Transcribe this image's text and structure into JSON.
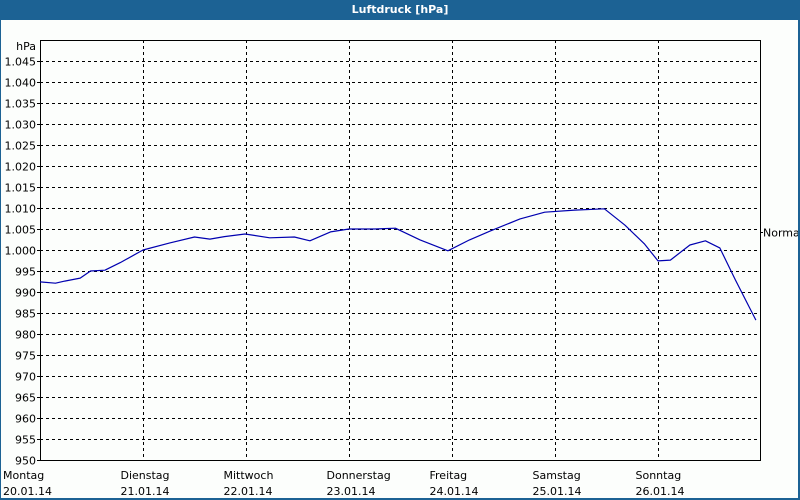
{
  "window": {
    "title": "Luftdruck [hPa]"
  },
  "chart_data": {
    "type": "line",
    "title": "Luftdruck [hPa]",
    "ylabel": "hPa",
    "xlabel": "",
    "ylim": [
      950,
      1050
    ],
    "grid": true,
    "y_ticks": [
      950,
      955,
      960,
      965,
      970,
      975,
      980,
      985,
      990,
      995,
      1000,
      1005,
      1010,
      1015,
      1020,
      1025,
      1030,
      1035,
      1040,
      1045
    ],
    "y_tick_labels": [
      "950",
      "955",
      "960",
      "965",
      "970",
      "975",
      "980",
      "985",
      "990",
      "995",
      "1.000",
      "1.005",
      "1.010",
      "1.015",
      "1.020",
      "1.025",
      "1.030",
      "1.035",
      "1.040",
      "1.045"
    ],
    "x_ticks": [
      {
        "day": "Montag",
        "date": "20.01.14"
      },
      {
        "day": "Dienstag",
        "date": "21.01.14"
      },
      {
        "day": "Mittwoch",
        "date": "22.01.14"
      },
      {
        "day": "Donnerstag",
        "date": "23.01.14"
      },
      {
        "day": "Freitag",
        "date": "24.01.14"
      },
      {
        "day": "Samstag",
        "date": "25.01.14"
      },
      {
        "day": "Sonntag",
        "date": "26.01.14"
      }
    ],
    "reference_line": {
      "label": "Normal",
      "value": 1004.3
    },
    "series": [
      {
        "name": "Luftdruck",
        "color": "#0000b0",
        "x_days": [
          0,
          0.15,
          0.24,
          0.39,
          0.49,
          0.63,
          0.78,
          1.0,
          1.26,
          1.5,
          1.65,
          1.79,
          1.99,
          2.23,
          2.47,
          2.62,
          2.82,
          3.0,
          3.25,
          3.45,
          3.69,
          3.96,
          4.17,
          4.37,
          4.66,
          4.9,
          5.19,
          5.48,
          5.68,
          5.87,
          6.0,
          6.12,
          6.31,
          6.46,
          6.6,
          6.75,
          6.89,
          6.95
        ],
        "values": [
          992.4,
          992.1,
          992.6,
          993.3,
          995.0,
          995.2,
          997.0,
          1000.0,
          1001.7,
          1003.1,
          1002.6,
          1003.2,
          1003.8,
          1002.9,
          1003.1,
          1002.2,
          1004.3,
          1005.0,
          1005.0,
          1005.2,
          1002.4,
          999.8,
          1002.4,
          1004.5,
          1007.4,
          1009.0,
          1009.5,
          1009.8,
          1005.9,
          1001.4,
          997.4,
          997.6,
          1001.2,
          1002.2,
          1000.5,
          992.9,
          986.2,
          983.3
        ]
      }
    ]
  },
  "colors": {
    "frame": "#1c6294",
    "background": "#fcfefc",
    "line": "#0000b0",
    "grid": "#000000"
  }
}
